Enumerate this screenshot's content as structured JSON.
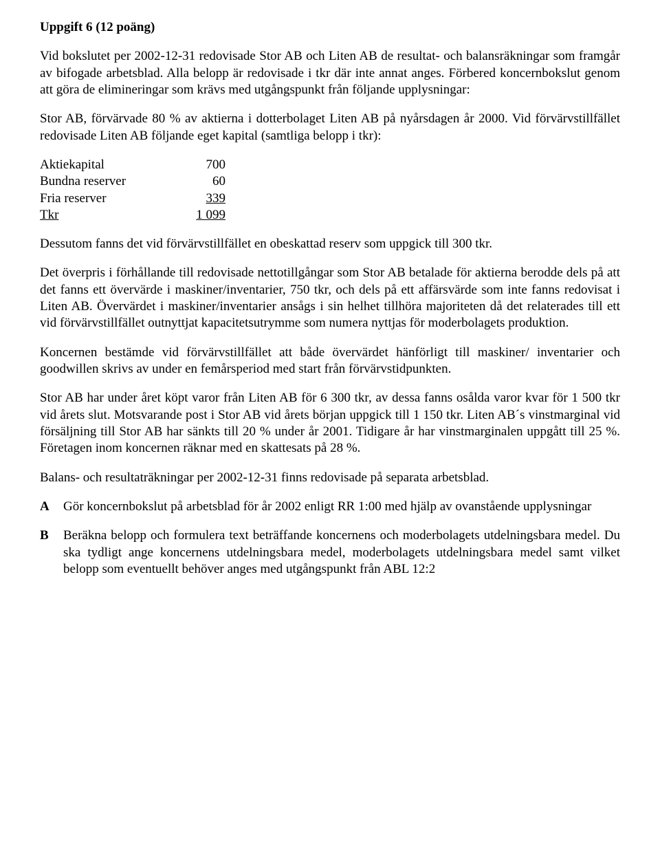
{
  "heading": "Uppgift 6 (12 poäng)",
  "p1": "Vid bokslutet per 2002-12-31 redovisade Stor AB och Liten AB de resultat- och balansräkningar som framgår av bifogade arbetsblad. Alla belopp är redovisade i tkr där inte annat anges. Förbered koncernbokslut genom att göra de elimineringar som krävs med utgångspunkt från följande upplysningar:",
  "p2": "Stor AB, förvärvade 80 % av aktierna i dotterbolaget Liten AB på nyårsdagen år 2000. Vid förvärvstillfället redovisade Liten AB följande eget kapital (samtliga belopp i tkr):",
  "capital": {
    "rows": [
      {
        "label": "Aktiekapital",
        "value": "700"
      },
      {
        "label": "Bundna reserver",
        "value": "60"
      },
      {
        "label": "Fria reserver",
        "value": "339"
      }
    ],
    "sum": {
      "label": "Tkr",
      "value": "1 099"
    }
  },
  "p3": "Dessutom fanns det vid förvärvstillfället en obeskattad reserv som uppgick till 300 tkr.",
  "p4": "Det överpris i förhållande till redovisade nettotillgångar som Stor AB betalade för aktierna berodde dels på att det fanns ett övervärde i maskiner/inventarier, 750 tkr, och dels på ett affärsvärde som inte fanns redovisat i Liten AB. Övervärdet i maskiner/inventarier ansågs i sin helhet tillhöra majoriteten då det relaterades till ett vid förvärvstillfället outnyttjat kapacitetsutrymme som numera nyttjas för moderbolagets produktion.",
  "p5": "Koncernen bestämde vid förvärvstillfället att både övervärdet hänförligt till maskiner/ inventarier och goodwillen skrivs av under en femårsperiod med start från förvärvstidpunkten.",
  "p6": "Stor AB har under året köpt varor från Liten AB för 6 300 tkr, av dessa fanns osålda varor kvar för 1 500 tkr vid årets slut. Motsvarande post i Stor AB vid årets början uppgick till 1 150 tkr. Liten AB´s vinstmarginal vid försäljning till Stor AB har sänkts till 20 % under år 2001. Tidigare år har vinstmarginalen uppgått till 25 %. Företagen inom koncernen räknar med en skattesats på 28 %.",
  "p7": "Balans- och resultaträkningar per 2002-12-31 finns redovisade på separata arbetsblad.",
  "qa": {
    "a": {
      "letter": "A",
      "text": "Gör koncernbokslut på arbetsblad för år 2002 enligt RR 1:00 med hjälp av ovanstående upplysningar"
    },
    "b": {
      "letter": "B",
      "text": "Beräkna belopp och formulera text beträffande koncernens och moderbolagets utdelningsbara medel. Du ska tydligt ange koncernens utdelningsbara medel, moderbolagets utdelningsbara medel samt vilket belopp som eventuellt behöver anges med utgångspunkt från ABL 12:2"
    }
  }
}
